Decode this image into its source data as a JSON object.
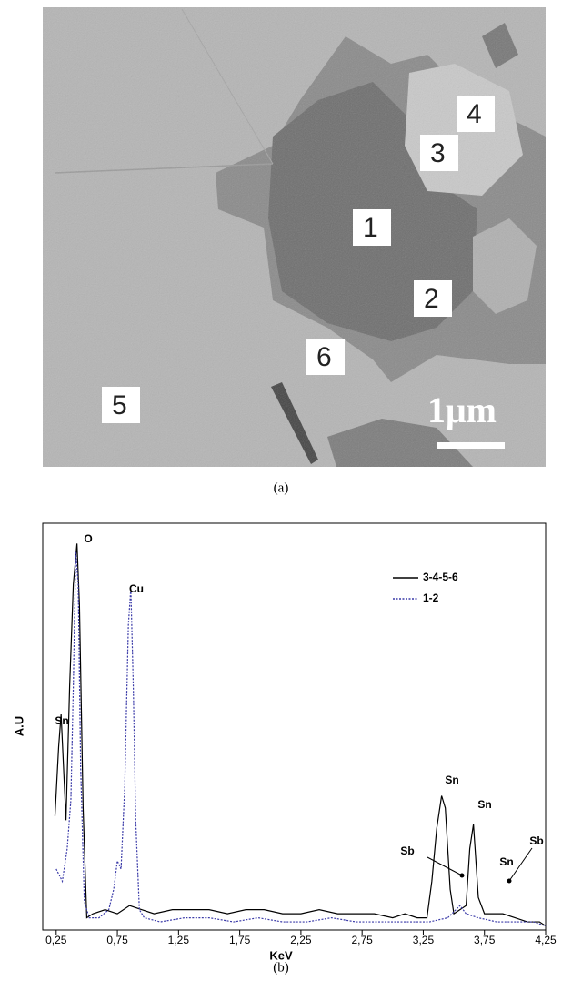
{
  "panel_a": {
    "point_labels": [
      "1",
      "2",
      "3",
      "4",
      "5",
      "6"
    ],
    "scale_bar": "1μm",
    "caption": "(a)"
  },
  "chart_data": {
    "type": "line",
    "caption": "(b)",
    "xlabel": "KeV",
    "ylabel": "A.U",
    "xlim": [
      0.14,
      4.25
    ],
    "ylim": [
      0,
      100
    ],
    "xticks": [
      {
        "value": 0.25,
        "label": "0,25"
      },
      {
        "value": 0.75,
        "label": "0,75"
      },
      {
        "value": 1.25,
        "label": "1,25"
      },
      {
        "value": 1.75,
        "label": "1,75"
      },
      {
        "value": 2.25,
        "label": "2,25"
      },
      {
        "value": 2.75,
        "label": "2,75"
      },
      {
        "value": 3.25,
        "label": "3,25"
      },
      {
        "value": 3.75,
        "label": "3,75"
      },
      {
        "value": 4.25,
        "label": "4,25"
      }
    ],
    "legend": "upper right",
    "series": [
      {
        "name": "3-4-5-6",
        "color": "#000000",
        "dash": "solid",
        "x": [
          0.24,
          0.27,
          0.29,
          0.31,
          0.33,
          0.36,
          0.39,
          0.42,
          0.44,
          0.47,
          0.5,
          0.55,
          0.65,
          0.75,
          0.85,
          0.95,
          1.05,
          1.2,
          1.35,
          1.5,
          1.65,
          1.8,
          1.95,
          2.1,
          2.25,
          2.4,
          2.55,
          2.7,
          2.85,
          3.0,
          3.1,
          3.2,
          3.28,
          3.32,
          3.36,
          3.4,
          3.43,
          3.47,
          3.5,
          3.55,
          3.6,
          3.63,
          3.66,
          3.7,
          3.75,
          3.8,
          3.9,
          4.0,
          4.1,
          4.2,
          4.25
        ],
        "values": [
          28,
          45,
          53,
          40,
          27,
          60,
          85,
          95,
          80,
          30,
          3,
          4,
          5,
          4,
          6,
          5,
          4,
          5,
          5,
          5,
          4,
          5,
          5,
          4,
          4,
          5,
          4,
          4,
          4,
          3,
          4,
          3,
          3,
          12,
          25,
          33,
          30,
          10,
          4,
          5,
          6,
          20,
          26,
          8,
          4,
          4,
          4,
          3,
          2,
          2,
          1
        ]
      },
      {
        "name": "1-2",
        "color": "#3a3aa8",
        "dash": "dotted",
        "x": [
          0.25,
          0.3,
          0.34,
          0.37,
          0.39,
          0.41,
          0.43,
          0.45,
          0.48,
          0.52,
          0.6,
          0.68,
          0.72,
          0.75,
          0.78,
          0.81,
          0.84,
          0.86,
          0.88,
          0.9,
          0.93,
          0.97,
          1.1,
          1.3,
          1.5,
          1.7,
          1.9,
          2.1,
          2.3,
          2.5,
          2.7,
          2.9,
          3.1,
          3.3,
          3.45,
          3.55,
          3.6,
          3.7,
          3.85,
          4.0,
          4.15,
          4.25
        ],
        "values": [
          15,
          12,
          20,
          32,
          60,
          93,
          85,
          40,
          7,
          3,
          3,
          5,
          10,
          17,
          15,
          35,
          75,
          84,
          60,
          27,
          5,
          3,
          2,
          3,
          3,
          2,
          3,
          2,
          2,
          3,
          2,
          2,
          2,
          2,
          3,
          6,
          4,
          3,
          2,
          2,
          2,
          1
        ]
      }
    ],
    "annotations": [
      "O",
      "Cu",
      "Sn",
      "Sn",
      "Sn",
      "Sn",
      "Sb",
      "Sb"
    ]
  }
}
